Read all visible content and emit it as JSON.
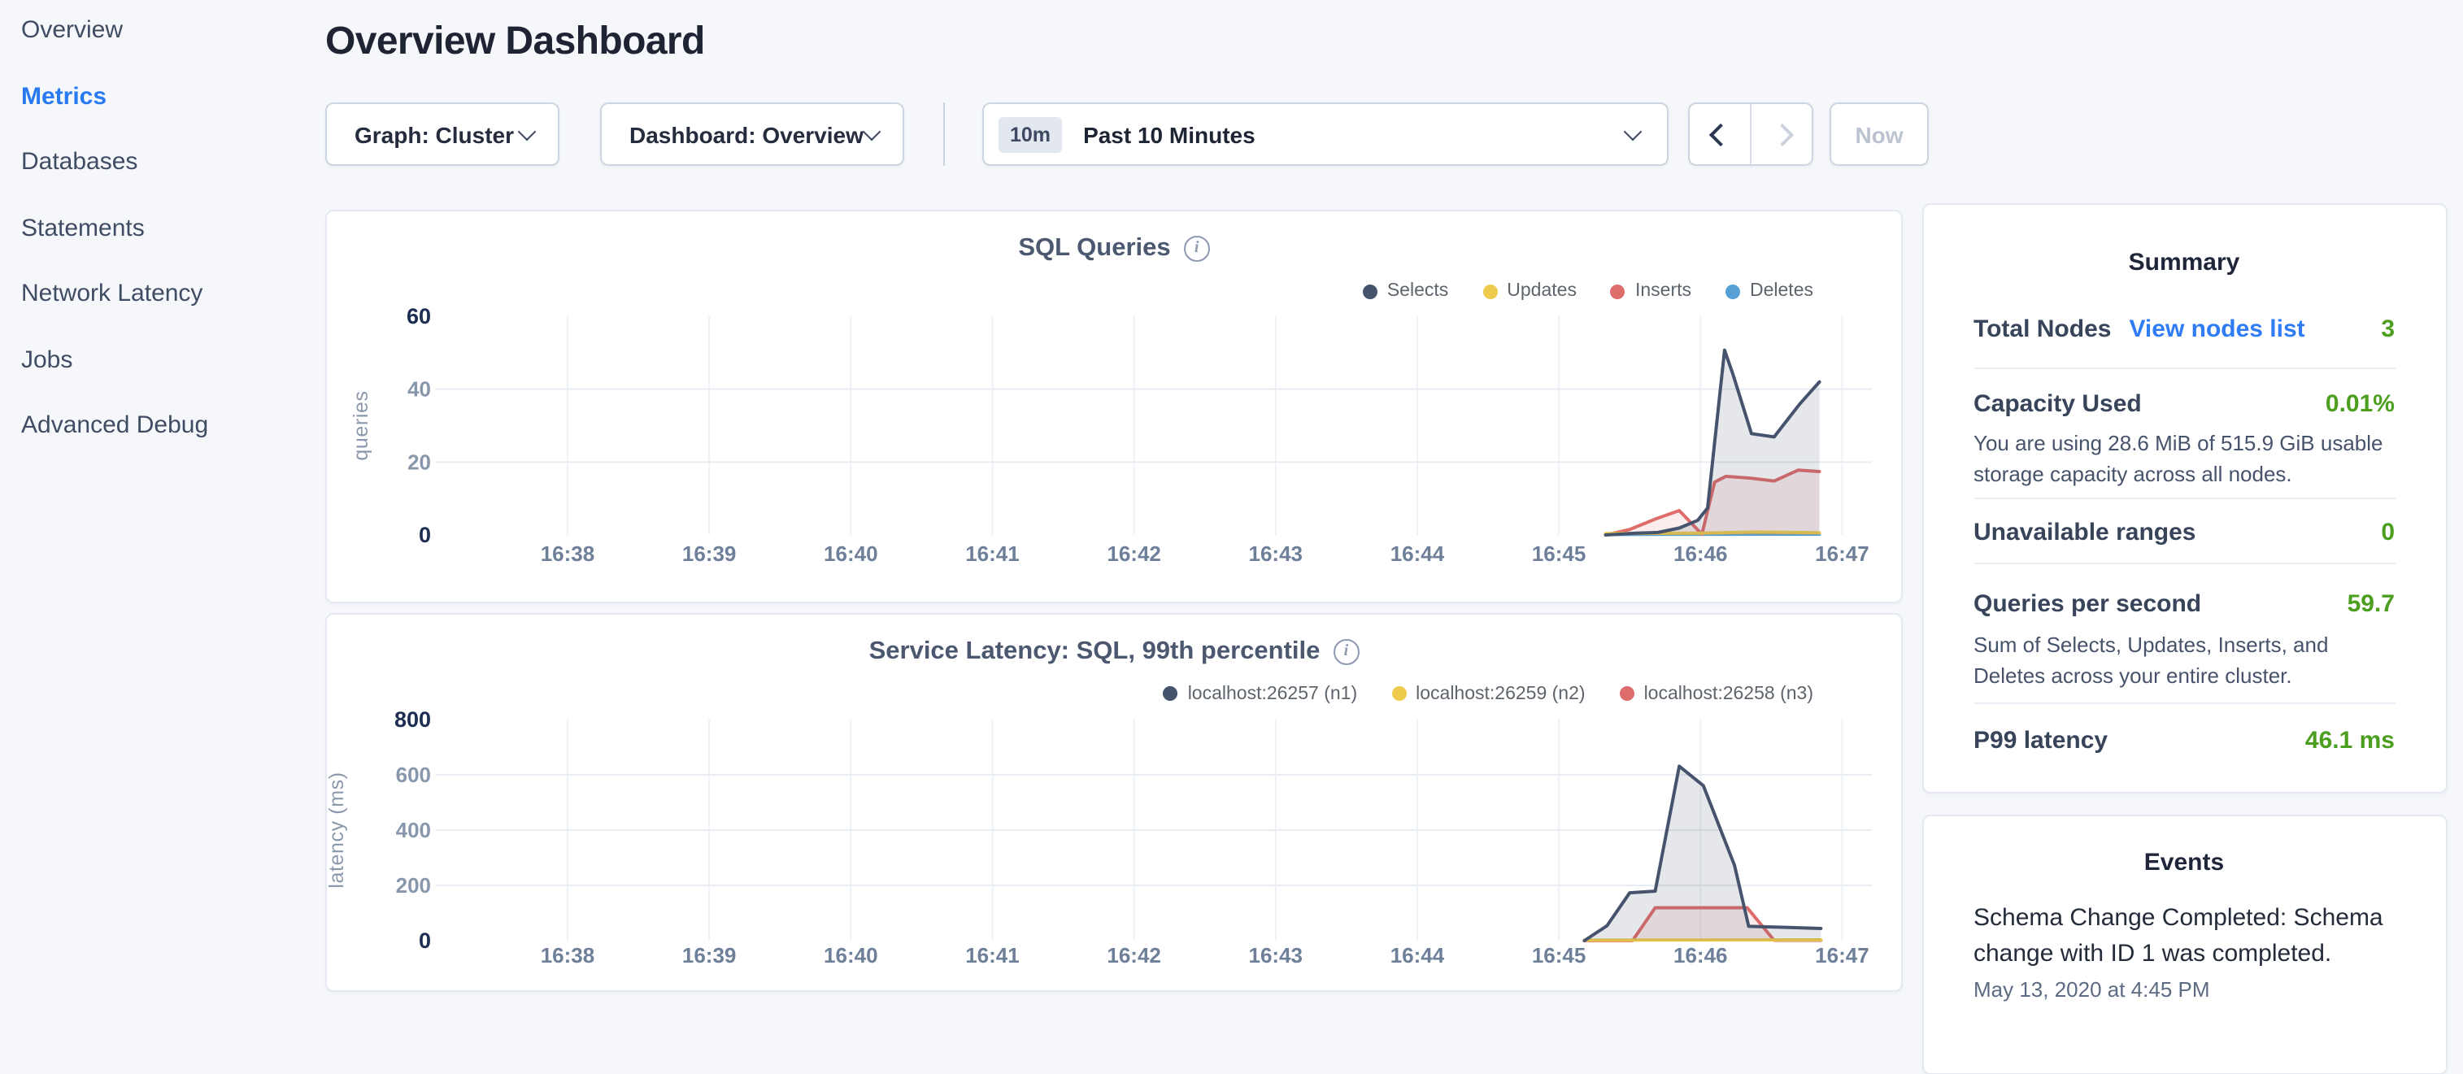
{
  "sidebar": {
    "items": [
      {
        "label": "Overview",
        "active": false
      },
      {
        "label": "Metrics",
        "active": true
      },
      {
        "label": "Databases",
        "active": false
      },
      {
        "label": "Statements",
        "active": false
      },
      {
        "label": "Network Latency",
        "active": false
      },
      {
        "label": "Jobs",
        "active": false
      },
      {
        "label": "Advanced Debug",
        "active": false
      }
    ]
  },
  "header": {
    "title": "Overview Dashboard"
  },
  "toolbar": {
    "graph_label": "Graph: Cluster",
    "dashboard_label": "Dashboard: Overview",
    "range_badge": "10m",
    "range_label": "Past 10 Minutes",
    "now_label": "Now"
  },
  "colors": {
    "accent_blue": "#2979f2",
    "link_blue": "#2f7cf5",
    "value_green": "#4c9e1f",
    "series_navy": "#46536d",
    "series_yellow": "#efcb4d",
    "series_red": "#de6c6a",
    "series_blue": "#56a0d5"
  },
  "charts": [
    {
      "id": "sql-queries",
      "type": "area",
      "title": "SQL Queries",
      "y_unit": "queries",
      "y_max": 60,
      "x_domain": [
        37.07,
        47.21
      ],
      "x_ticks": [
        {
          "m": 38,
          "label": "16:38"
        },
        {
          "m": 39,
          "label": "16:39"
        },
        {
          "m": 40,
          "label": "16:40"
        },
        {
          "m": 41,
          "label": "16:41"
        },
        {
          "m": 42,
          "label": "16:42"
        },
        {
          "m": 43,
          "label": "16:43"
        },
        {
          "m": 44,
          "label": "16:44"
        },
        {
          "m": 45,
          "label": "16:45"
        },
        {
          "m": 46,
          "label": "16:46"
        },
        {
          "m": 47,
          "label": "16:47"
        }
      ],
      "y_ticks": [
        {
          "v": 60,
          "label": "60",
          "major": true
        },
        {
          "v": 40,
          "label": "40",
          "major": false
        },
        {
          "v": 20,
          "label": "20",
          "major": false
        },
        {
          "v": 0,
          "label": "0",
          "major": true
        }
      ],
      "series": [
        {
          "name": "Selects",
          "color": "#46536d",
          "fill": "rgba(70,83,109,0.14)",
          "points": [
            [
              45.33,
              0
            ],
            [
              45.55,
              0.5
            ],
            [
              45.7,
              0.7
            ],
            [
              45.85,
              1.9
            ],
            [
              45.98,
              4.0
            ],
            [
              46.05,
              7.4
            ],
            [
              46.17,
              50.7
            ],
            [
              46.23,
              44
            ],
            [
              46.36,
              27.8
            ],
            [
              46.52,
              26.9
            ],
            [
              46.7,
              35.9
            ],
            [
              46.84,
              42
            ]
          ]
        },
        {
          "name": "Updates",
          "color": "#efcb4d",
          "fill": "rgba(239,203,77,0.12)",
          "points": [
            [
              45.33,
              0.4
            ],
            [
              46.0,
              0.5
            ],
            [
              46.4,
              0.8
            ],
            [
              46.84,
              0.6
            ]
          ]
        },
        {
          "name": "Inserts",
          "color": "#de6c6a",
          "fill": "rgba(222,108,106,0.12)",
          "points": [
            [
              45.33,
              0
            ],
            [
              45.5,
              1.5
            ],
            [
              45.69,
              4.5
            ],
            [
              45.85,
              6.7
            ],
            [
              46.01,
              0.2
            ],
            [
              46.1,
              14.5
            ],
            [
              46.18,
              16.1
            ],
            [
              46.35,
              15.6
            ],
            [
              46.52,
              14.8
            ],
            [
              46.69,
              17.8
            ],
            [
              46.84,
              17.4
            ]
          ]
        },
        {
          "name": "Deletes",
          "color": "#56a0d5",
          "fill": "rgba(86,160,213,0.10)",
          "points": [
            [
              45.33,
              0.15
            ],
            [
              46.84,
              0.2
            ]
          ]
        }
      ]
    },
    {
      "id": "sql-latency",
      "type": "area",
      "title": "Service Latency: SQL, 99th percentile",
      "y_unit": "latency (ms)",
      "y_max": 800,
      "x_domain": [
        37.07,
        47.21
      ],
      "x_ticks": [
        {
          "m": 38,
          "label": "16:38"
        },
        {
          "m": 39,
          "label": "16:39"
        },
        {
          "m": 40,
          "label": "16:40"
        },
        {
          "m": 41,
          "label": "16:41"
        },
        {
          "m": 42,
          "label": "16:42"
        },
        {
          "m": 43,
          "label": "16:43"
        },
        {
          "m": 44,
          "label": "16:44"
        },
        {
          "m": 45,
          "label": "16:45"
        },
        {
          "m": 46,
          "label": "16:46"
        },
        {
          "m": 47,
          "label": "16:47"
        }
      ],
      "y_ticks": [
        {
          "v": 800,
          "label": "800",
          "major": true
        },
        {
          "v": 600,
          "label": "600",
          "major": false
        },
        {
          "v": 400,
          "label": "400",
          "major": false
        },
        {
          "v": 200,
          "label": "200",
          "major": false
        },
        {
          "v": 0,
          "label": "0",
          "major": true
        }
      ],
      "series": [
        {
          "name": "localhost:26257 (n1)",
          "color": "#46536d",
          "fill": "rgba(70,83,109,0.14)",
          "points": [
            [
              45.18,
              0
            ],
            [
              45.34,
              54
            ],
            [
              45.5,
              173
            ],
            [
              45.68,
              179
            ],
            [
              45.85,
              631
            ],
            [
              46.02,
              561
            ],
            [
              46.24,
              273
            ],
            [
              46.34,
              52
            ],
            [
              46.6,
              48
            ],
            [
              46.85,
              44
            ]
          ]
        },
        {
          "name": "localhost:26259 (n2)",
          "color": "#efcb4d",
          "fill": "rgba(239,203,77,0.12)",
          "points": [
            [
              45.18,
              2
            ],
            [
              46.85,
              3
            ]
          ]
        },
        {
          "name": "localhost:26258 (n3)",
          "color": "#de6c6a",
          "fill": "rgba(222,108,106,0.12)",
          "points": [
            [
              45.18,
              0
            ],
            [
              45.52,
              0
            ],
            [
              45.68,
              119
            ],
            [
              46.33,
              119
            ],
            [
              46.52,
              1
            ],
            [
              46.85,
              1
            ]
          ]
        }
      ]
    }
  ],
  "summary": {
    "title": "Summary",
    "total_nodes_label": "Total Nodes",
    "total_nodes_link": "View nodes list",
    "total_nodes_value": "3",
    "capacity_label": "Capacity Used",
    "capacity_value": "0.01%",
    "capacity_desc": "You are using 28.6 MiB of 515.9 GiB usable storage capacity across all nodes.",
    "unavailable_label": "Unavailable ranges",
    "unavailable_value": "0",
    "qps_label": "Queries per second",
    "qps_value": "59.7",
    "qps_desc": "Sum of Selects, Updates, Inserts, and Deletes across your entire cluster.",
    "p99_label": "P99 latency",
    "p99_value": "46.1 ms"
  },
  "events": {
    "title": "Events",
    "items": [
      {
        "text": "Schema Change Completed: Schema change with ID 1 was completed.",
        "timestamp": "May 13, 2020 at 4:45 PM"
      }
    ]
  }
}
